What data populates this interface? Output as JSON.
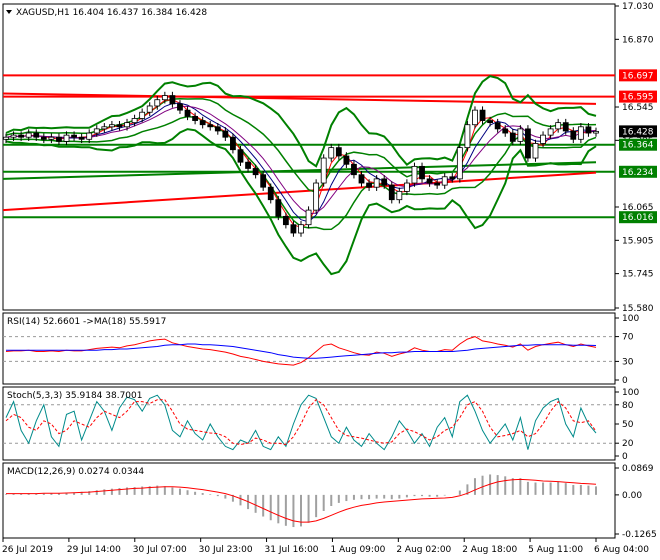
{
  "chart_data": {
    "type": "candlestick",
    "symbol_line": "XAGUSD,H1  16.404 16.437 16.384 16.428",
    "time_labels": [
      "26 Jul 2019",
      "29 Jul 14:00",
      "30 Jul 07:00",
      "30 Jul 23:00",
      "31 Jul 16:00",
      "1 Aug 09:00",
      "2 Aug 02:00",
      "2 Aug 18:00",
      "5 Aug 11:00",
      "6 Aug 04:00"
    ],
    "price_axis": {
      "ticks": [
        "17.030",
        "16.870",
        "16.545",
        "16.385",
        "16.065",
        "15.905",
        "15.745",
        "15.580"
      ],
      "tick_values": [
        17.03,
        16.87,
        16.545,
        16.385,
        16.065,
        15.905,
        15.745,
        15.58
      ],
      "ylim": [
        15.58,
        17.03
      ]
    },
    "price_tags": [
      {
        "text": "16.697",
        "value": 16.697,
        "color": "#ff0000"
      },
      {
        "text": "16.595",
        "value": 16.595,
        "color": "#ff0000"
      },
      {
        "text": "16.428",
        "value": 16.428,
        "color": "#000000"
      },
      {
        "text": "16.364",
        "value": 16.364,
        "color": "#008000"
      },
      {
        "text": "16.234",
        "value": 16.234,
        "color": "#008000"
      },
      {
        "text": "16.016",
        "value": 16.016,
        "color": "#008000"
      }
    ],
    "horizontal_levels": [
      {
        "value": 16.697,
        "color": "#ff0000"
      },
      {
        "value": 16.595,
        "color": "#ff0000"
      },
      {
        "value": 16.364,
        "color": "#008000"
      },
      {
        "value": 16.234,
        "color": "#008000"
      },
      {
        "value": 16.016,
        "color": "#008000"
      }
    ],
    "close_series": [
      16.4,
      16.41,
      16.4,
      16.42,
      16.4,
      16.39,
      16.4,
      16.38,
      16.41,
      16.4,
      16.39,
      16.42,
      16.44,
      16.45,
      16.46,
      16.45,
      16.47,
      16.49,
      16.52,
      16.55,
      16.58,
      16.6,
      16.56,
      16.53,
      16.5,
      16.48,
      16.46,
      16.45,
      16.43,
      16.4,
      16.34,
      16.28,
      16.25,
      16.22,
      16.16,
      16.1,
      16.02,
      15.98,
      15.94,
      15.98,
      16.05,
      16.18,
      16.3,
      16.35,
      16.31,
      16.27,
      16.22,
      16.18,
      16.16,
      16.2,
      16.17,
      16.1,
      16.14,
      16.18,
      16.26,
      16.2,
      16.18,
      16.17,
      16.21,
      16.2,
      16.35,
      16.46,
      16.53,
      16.48,
      16.47,
      16.44,
      16.42,
      16.38,
      16.44,
      16.3,
      16.37,
      16.41,
      16.44,
      16.47,
      16.43,
      16.39,
      16.45,
      16.42,
      16.428
    ],
    "rsi": {
      "label": "RSI(14) 52.6601  ->MA(18) 55.5917",
      "ticks": [
        "100",
        "70",
        "30",
        "0"
      ],
      "tick_values": [
        100,
        70,
        30,
        0
      ],
      "ylim": [
        0,
        100
      ],
      "values": [
        46,
        47,
        47,
        48,
        46,
        46,
        47,
        46,
        48,
        47,
        47,
        49,
        51,
        52,
        53,
        52,
        55,
        57,
        60,
        63,
        65,
        66,
        60,
        57,
        54,
        52,
        50,
        49,
        47,
        45,
        42,
        38,
        36,
        33,
        30,
        28,
        26,
        25,
        24,
        28,
        36,
        46,
        56,
        58,
        52,
        48,
        44,
        41,
        40,
        45,
        43,
        38,
        42,
        45,
        52,
        48,
        46,
        46,
        49,
        48,
        58,
        66,
        70,
        63,
        61,
        58,
        56,
        53,
        58,
        48,
        54,
        57,
        59,
        61,
        57,
        54,
        58,
        55,
        52.66
      ],
      "ma": [
        48,
        48,
        48,
        48,
        48,
        48,
        48,
        48,
        48,
        48,
        48,
        48,
        48,
        49,
        49,
        50,
        50,
        51,
        52,
        53,
        54,
        56,
        57,
        57,
        58,
        58,
        57,
        57,
        56,
        55,
        54,
        52,
        50,
        48,
        46,
        44,
        41,
        39,
        37,
        36,
        35,
        35,
        36,
        37,
        38,
        39,
        40,
        41,
        42,
        43,
        44,
        44,
        45,
        45,
        46,
        46,
        46,
        46,
        46,
        46,
        47,
        48,
        50,
        51,
        52,
        53,
        54,
        55,
        56,
        56,
        57,
        57,
        57,
        57,
        57,
        56,
        56,
        56,
        55.59
      ],
      "levels": [
        70,
        30
      ]
    },
    "stoch": {
      "label": "Stoch(5,3,3) 35.9184 38.7001",
      "ticks": [
        "100",
        "80",
        "50",
        "20",
        "0"
      ],
      "tick_values": [
        100,
        80,
        50,
        20,
        0
      ],
      "ylim": [
        0,
        100
      ],
      "k": [
        60,
        85,
        40,
        20,
        55,
        80,
        30,
        15,
        65,
        70,
        25,
        55,
        85,
        70,
        40,
        75,
        92,
        88,
        70,
        90,
        95,
        80,
        40,
        30,
        55,
        35,
        25,
        50,
        30,
        15,
        10,
        25,
        20,
        40,
        15,
        10,
        30,
        15,
        50,
        80,
        95,
        90,
        60,
        30,
        20,
        45,
        25,
        15,
        35,
        20,
        10,
        30,
        55,
        40,
        20,
        35,
        15,
        45,
        60,
        30,
        85,
        95,
        70,
        40,
        20,
        35,
        50,
        25,
        60,
        10,
        55,
        75,
        85,
        90,
        50,
        30,
        75,
        50,
        35.92
      ],
      "d": [
        55,
        65,
        60,
        45,
        40,
        55,
        50,
        35,
        40,
        55,
        50,
        45,
        60,
        70,
        65,
        60,
        70,
        85,
        85,
        82,
        88,
        88,
        70,
        50,
        42,
        40,
        38,
        36,
        35,
        30,
        20,
        18,
        20,
        28,
        25,
        20,
        20,
        18,
        30,
        50,
        75,
        88,
        80,
        60,
        40,
        32,
        30,
        28,
        25,
        22,
        20,
        22,
        35,
        42,
        38,
        32,
        25,
        30,
        40,
        45,
        60,
        80,
        85,
        70,
        45,
        30,
        32,
        35,
        40,
        30,
        35,
        50,
        70,
        85,
        75,
        55,
        52,
        55,
        38.7
      ],
      "levels": [
        80,
        20
      ]
    },
    "macd": {
      "label": "MACD(12,26,9) 0.0274 0.0344",
      "ticks": [
        "0.0869",
        "0.00",
        "-0.1265"
      ],
      "tick_values": [
        0.0869,
        0,
        -0.1265
      ],
      "ylim": [
        -0.1265,
        0.0869
      ],
      "hist": [
        0.002,
        0.003,
        0.004,
        0.005,
        0.004,
        0.004,
        0.005,
        0.006,
        0.007,
        0.008,
        0.01,
        0.012,
        0.015,
        0.018,
        0.02,
        0.022,
        0.024,
        0.025,
        0.027,
        0.028,
        0.03,
        0.028,
        0.024,
        0.02,
        0.015,
        0.01,
        0.006,
        0.002,
        -0.004,
        -0.012,
        -0.022,
        -0.034,
        -0.046,
        -0.058,
        -0.07,
        -0.082,
        -0.092,
        -0.1,
        -0.104,
        -0.102,
        -0.09,
        -0.072,
        -0.052,
        -0.036,
        -0.026,
        -0.02,
        -0.016,
        -0.014,
        -0.014,
        -0.012,
        -0.012,
        -0.014,
        -0.012,
        -0.008,
        -0.004,
        -0.004,
        -0.006,
        -0.006,
        -0.002,
        0.0,
        0.014,
        0.034,
        0.054,
        0.062,
        0.066,
        0.064,
        0.06,
        0.054,
        0.054,
        0.042,
        0.04,
        0.04,
        0.04,
        0.042,
        0.038,
        0.032,
        0.032,
        0.03,
        0.0274
      ],
      "signal": [
        0.004,
        0.004,
        0.004,
        0.004,
        0.004,
        0.005,
        0.005,
        0.005,
        0.006,
        0.007,
        0.008,
        0.009,
        0.011,
        0.013,
        0.015,
        0.017,
        0.019,
        0.021,
        0.022,
        0.024,
        0.025,
        0.026,
        0.026,
        0.025,
        0.023,
        0.02,
        0.017,
        0.013,
        0.009,
        0.004,
        -0.003,
        -0.012,
        -0.022,
        -0.033,
        -0.044,
        -0.055,
        -0.066,
        -0.076,
        -0.084,
        -0.088,
        -0.088,
        -0.084,
        -0.076,
        -0.066,
        -0.056,
        -0.047,
        -0.04,
        -0.034,
        -0.03,
        -0.026,
        -0.023,
        -0.021,
        -0.019,
        -0.017,
        -0.015,
        -0.013,
        -0.012,
        -0.011,
        -0.01,
        -0.008,
        -0.003,
        0.005,
        0.016,
        0.026,
        0.035,
        0.042,
        0.046,
        0.049,
        0.05,
        0.049,
        0.047,
        0.045,
        0.044,
        0.043,
        0.041,
        0.039,
        0.037,
        0.036,
        0.0344
      ]
    }
  }
}
